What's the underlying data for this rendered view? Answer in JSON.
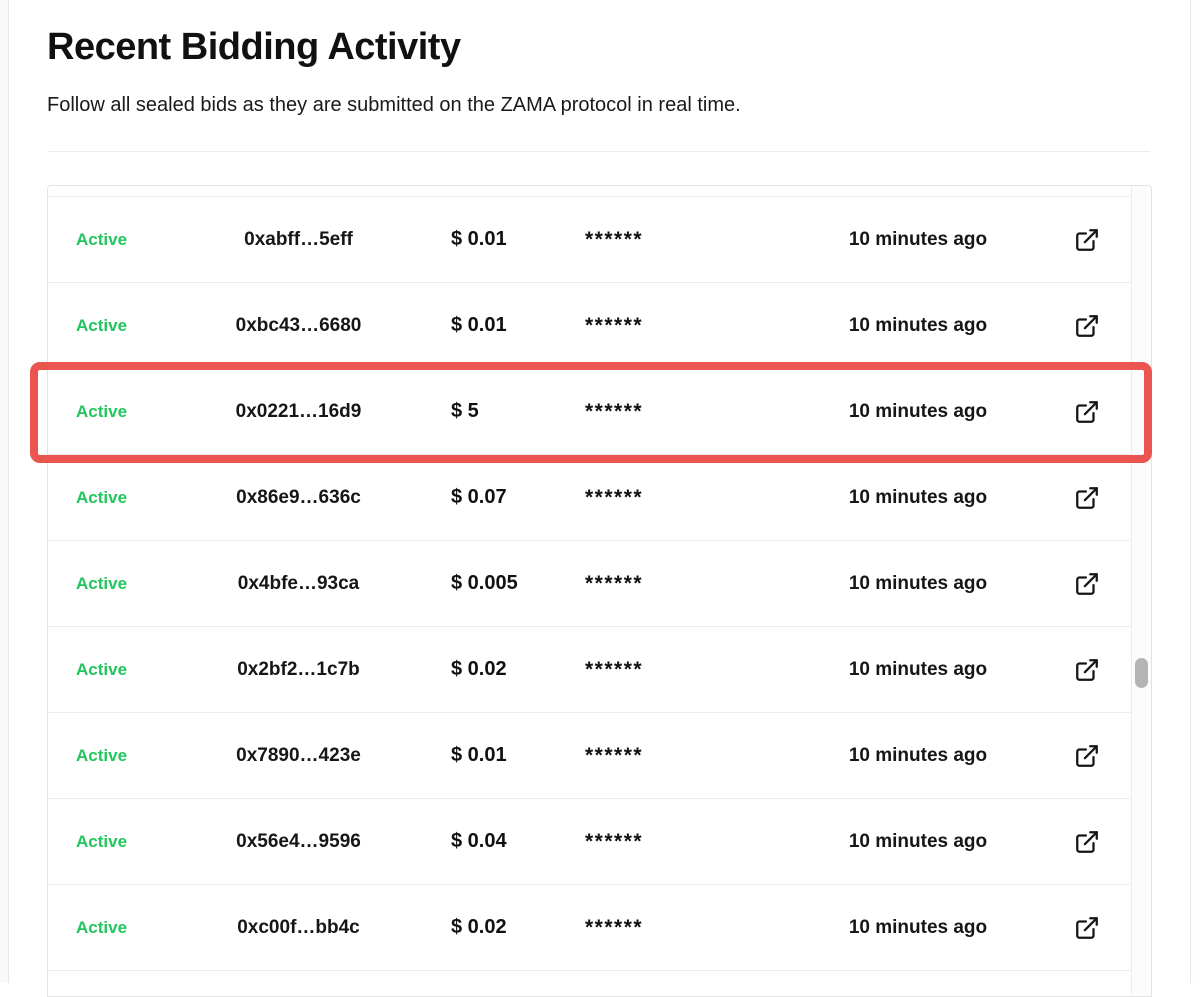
{
  "page": {
    "title": "Recent Bidding Activity",
    "subtitle": "Follow all sealed bids as they are submitted on the ZAMA protocol in real time."
  },
  "table": {
    "rows": [
      {
        "status": "Active",
        "address": "0xabff…5eff",
        "amount": "$ 0.01",
        "masked": "******",
        "time": "10 minutes ago"
      },
      {
        "status": "Active",
        "address": "0xbc43…6680",
        "amount": "$ 0.01",
        "masked": "******",
        "time": "10 minutes ago"
      },
      {
        "status": "Active",
        "address": "0x0221…16d9",
        "amount": "$ 5",
        "masked": "******",
        "time": "10 minutes ago",
        "highlighted": true
      },
      {
        "status": "Active",
        "address": "0x86e9…636c",
        "amount": "$ 0.07",
        "masked": "******",
        "time": "10 minutes ago"
      },
      {
        "status": "Active",
        "address": "0x4bfe…93ca",
        "amount": "$ 0.005",
        "masked": "******",
        "time": "10 minutes ago"
      },
      {
        "status": "Active",
        "address": "0x2bf2…1c7b",
        "amount": "$ 0.02",
        "masked": "******",
        "time": "10 minutes ago"
      },
      {
        "status": "Active",
        "address": "0x7890…423e",
        "amount": "$ 0.01",
        "masked": "******",
        "time": "10 minutes ago"
      },
      {
        "status": "Active",
        "address": "0x56e4…9596",
        "amount": "$ 0.04",
        "masked": "******",
        "time": "10 minutes ago"
      },
      {
        "status": "Active",
        "address": "0xc00f…bb4c",
        "amount": "$ 0.02",
        "masked": "******",
        "time": "10 minutes ago"
      }
    ],
    "icons": {
      "row_link": "external-link-icon"
    }
  },
  "colors": {
    "status_active": "#22c55e",
    "highlight_border": "#ea554f",
    "row_border": "#ececec",
    "scrollbar_thumb": "#b4b4b4",
    "text": "#161616"
  }
}
